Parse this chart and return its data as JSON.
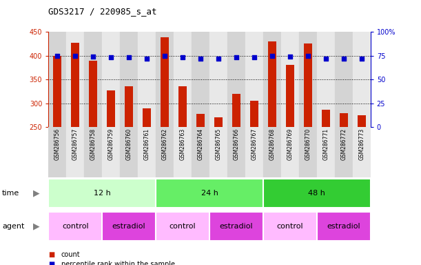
{
  "title": "GDS3217 / 220985_s_at",
  "samples": [
    "GSM286756",
    "GSM286757",
    "GSM286758",
    "GSM286759",
    "GSM286760",
    "GSM286761",
    "GSM286762",
    "GSM286763",
    "GSM286764",
    "GSM286765",
    "GSM286766",
    "GSM286767",
    "GSM286768",
    "GSM286769",
    "GSM286770",
    "GSM286771",
    "GSM286772",
    "GSM286773"
  ],
  "counts": [
    400,
    427,
    390,
    327,
    336,
    290,
    438,
    336,
    278,
    271,
    320,
    306,
    430,
    380,
    426,
    287,
    279,
    275
  ],
  "percentile_ranks": [
    75,
    75,
    74,
    73,
    73,
    72,
    75,
    73,
    72,
    72,
    73,
    73,
    75,
    74,
    75,
    72,
    72,
    72
  ],
  "ylim_left": [
    250,
    450
  ],
  "ylim_right": [
    0,
    100
  ],
  "yticks_left": [
    250,
    300,
    350,
    400,
    450
  ],
  "yticks_right": [
    0,
    25,
    50,
    75,
    100
  ],
  "bar_color": "#cc2200",
  "dot_color": "#0000cc",
  "col_bg_even": "#d4d4d4",
  "col_bg_odd": "#e8e8e8",
  "time_groups": [
    {
      "label": "12 h",
      "start": 0,
      "end": 6,
      "color": "#ccffcc"
    },
    {
      "label": "24 h",
      "start": 6,
      "end": 12,
      "color": "#66ee66"
    },
    {
      "label": "48 h",
      "start": 12,
      "end": 18,
      "color": "#33cc33"
    }
  ],
  "agent_groups": [
    {
      "label": "control",
      "start": 0,
      "end": 3,
      "color": "#ffbbff"
    },
    {
      "label": "estradiol",
      "start": 3,
      "end": 6,
      "color": "#dd44dd"
    },
    {
      "label": "control",
      "start": 6,
      "end": 9,
      "color": "#ffbbff"
    },
    {
      "label": "estradiol",
      "start": 9,
      "end": 12,
      "color": "#dd44dd"
    },
    {
      "label": "control",
      "start": 12,
      "end": 15,
      "color": "#ffbbff"
    },
    {
      "label": "estradiol",
      "start": 15,
      "end": 18,
      "color": "#dd44dd"
    }
  ],
  "legend_count_label": "count",
  "legend_pct_label": "percentile rank within the sample",
  "time_label": "time",
  "agent_label": "agent",
  "gridlines": [
    300,
    350,
    400
  ]
}
